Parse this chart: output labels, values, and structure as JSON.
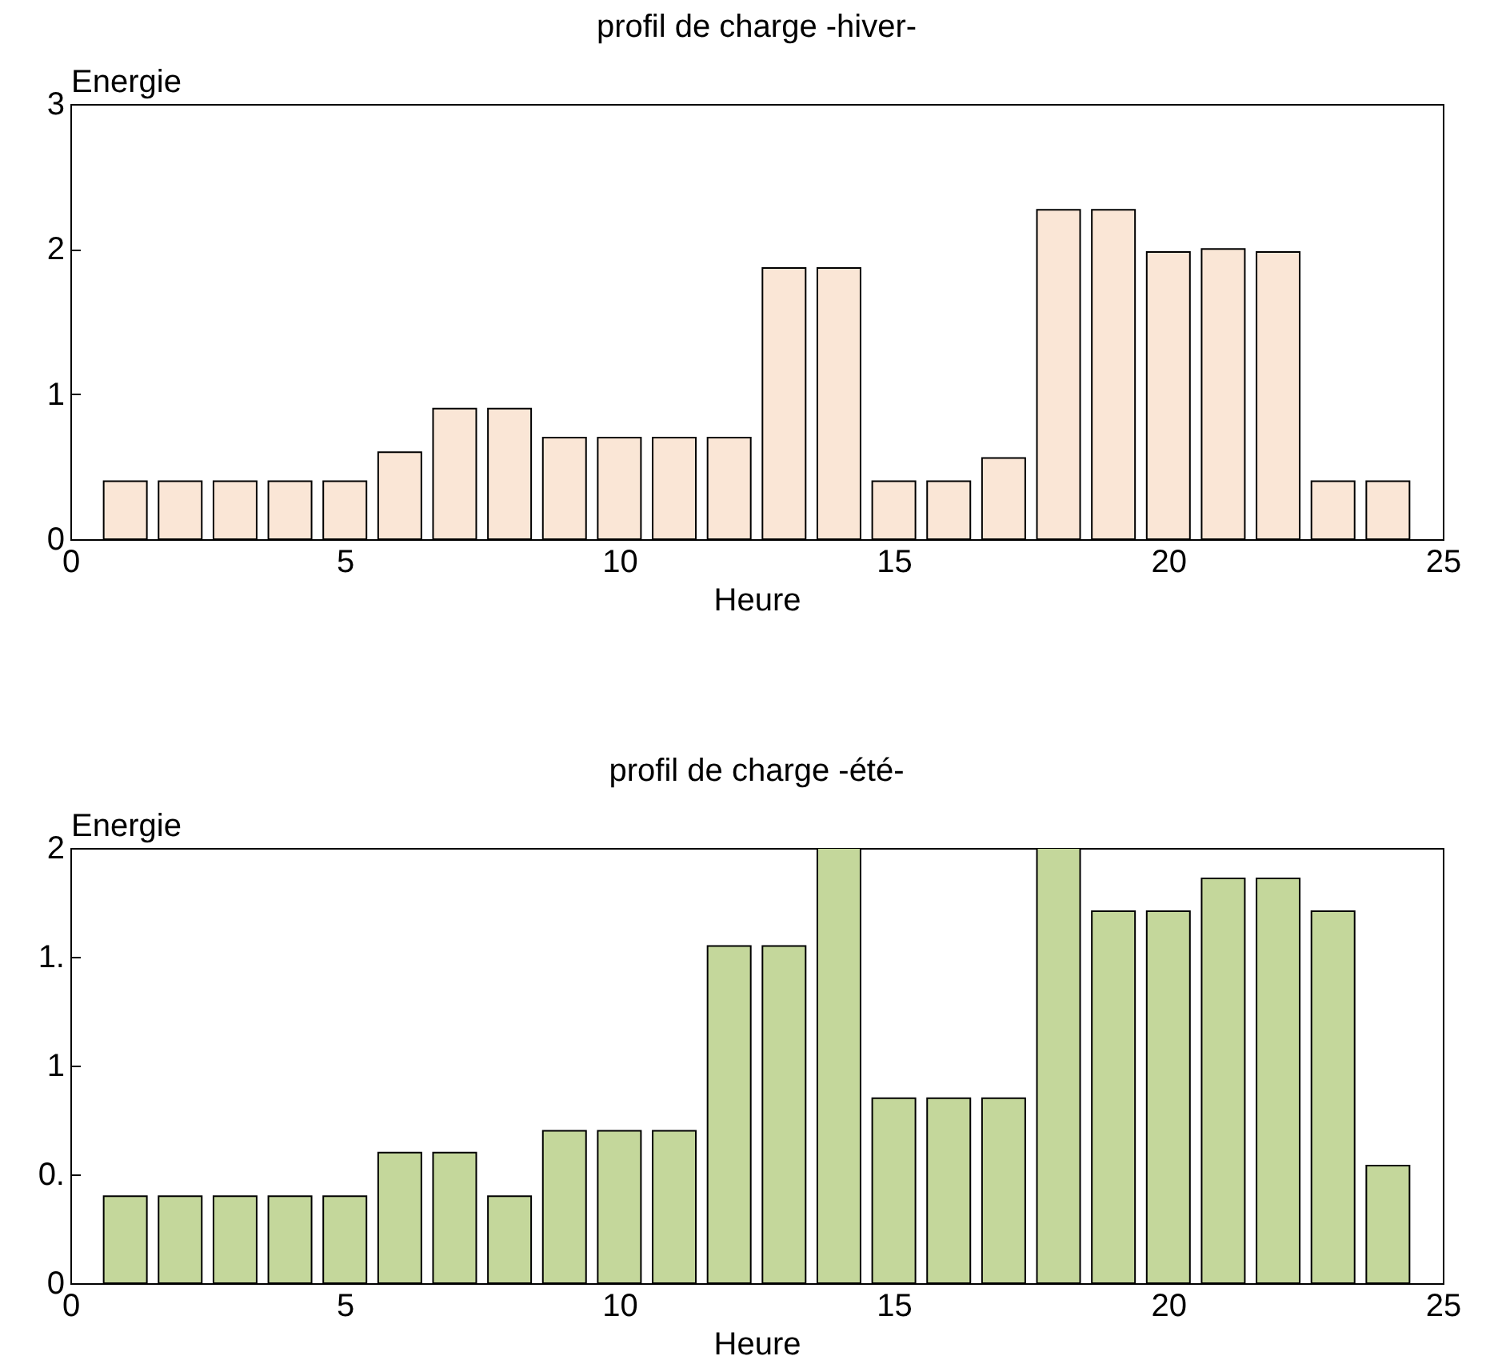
{
  "chart_data": [
    {
      "type": "bar",
      "title": "profil de charge -hiver-",
      "xlabel": "Heure",
      "ylabel": "Energie",
      "x": [
        1,
        2,
        3,
        4,
        5,
        6,
        7,
        8,
        9,
        10,
        11,
        12,
        13,
        14,
        15,
        16,
        17,
        18,
        19,
        20,
        21,
        22,
        23,
        24
      ],
      "series": [
        {
          "color": "#fae6d6",
          "values": [
            0.4,
            0.4,
            0.4,
            0.4,
            0.4,
            0.6,
            0.9,
            0.9,
            0.7,
            0.7,
            0.7,
            0.7,
            1.87,
            1.87,
            0.4,
            0.4,
            0.56,
            2.27,
            2.27,
            1.98,
            2.0,
            1.98,
            0.4,
            0.4
          ]
        }
      ],
      "xlim": [
        0,
        25
      ],
      "xticks": [
        0,
        5,
        10,
        15,
        20,
        25
      ],
      "ylim": [
        0,
        3
      ],
      "yticks": [
        0,
        1,
        2,
        3
      ]
    },
    {
      "type": "bar",
      "title": "profil de charge -été-",
      "xlabel": "Heure",
      "ylabel": "Energie",
      "x": [
        1,
        2,
        3,
        4,
        5,
        6,
        7,
        8,
        9,
        10,
        11,
        12,
        13,
        14,
        15,
        16,
        17,
        18,
        19,
        20,
        21,
        22,
        23,
        24
      ],
      "series": [
        {
          "color": "#c4d79b",
          "values": [
            0.4,
            0.4,
            0.4,
            0.4,
            0.4,
            0.6,
            0.6,
            0.4,
            0.7,
            0.7,
            0.7,
            1.55,
            1.55,
            2.0,
            0.85,
            0.85,
            0.85,
            2.0,
            1.71,
            1.71,
            1.86,
            1.86,
            1.71,
            0.54
          ]
        }
      ],
      "xlim": [
        0,
        25
      ],
      "xticks": [
        0,
        5,
        10,
        15,
        20,
        25
      ],
      "ylim": [
        0,
        2
      ],
      "yticks": [
        0,
        {
          "value": 0.5,
          "label": "0."
        },
        1,
        {
          "value": 1.5,
          "label": "1."
        },
        2
      ]
    }
  ]
}
